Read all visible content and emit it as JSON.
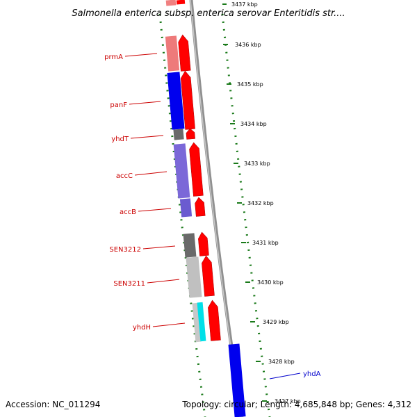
{
  "title": "Salmonella enterica subsp. enterica serovar Enteritidis str....",
  "footer": {
    "accession": "Accession: NC_011294",
    "topology": "Topology: circular; Length: 4,685,848 bp; Genes: 4,312"
  },
  "colors": {
    "forward_arrow": "#ff0000",
    "reverse_gene_label": "#0000cc",
    "forward_gene_label": "#cc0000",
    "tick_dots": "#1a7a1a",
    "backbone": "#808080"
  },
  "kbp_ticks": [
    "3437 kbp",
    "3436 kbp",
    "3435 kbp",
    "3434 kbp",
    "3433 kbp",
    "3432 kbp",
    "3431 kbp",
    "3430 kbp",
    "3429 kbp",
    "3428 kbp",
    "3427 kbp"
  ],
  "genes": [
    {
      "name": "prmA",
      "strand": "forward"
    },
    {
      "name": "panF",
      "strand": "forward"
    },
    {
      "name": "yhdT",
      "strand": "forward"
    },
    {
      "name": "accC",
      "strand": "forward"
    },
    {
      "name": "accB",
      "strand": "forward"
    },
    {
      "name": "SEN3212",
      "strand": "forward"
    },
    {
      "name": "SEN3211",
      "strand": "forward"
    },
    {
      "name": "yhdH",
      "strand": "forward"
    },
    {
      "name": "yhdA",
      "strand": "reverse"
    }
  ]
}
